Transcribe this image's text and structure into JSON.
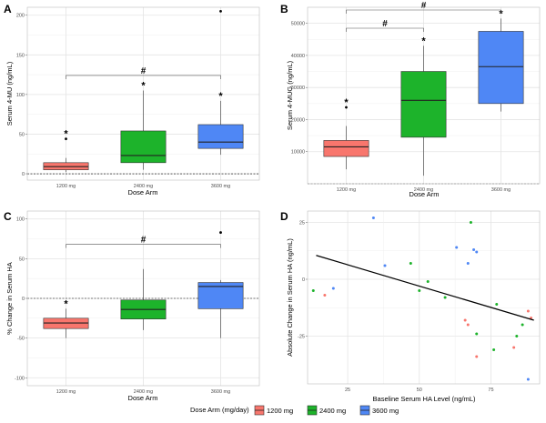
{
  "colors": {
    "1200 mg": "#F8766D",
    "2400 mg": "#1DB32B",
    "3600 mg": "#4F87F5",
    "grid": "#e4e4e4",
    "panel_border": "#bdbdbd"
  },
  "chart_data": [
    {
      "panel": "A",
      "type": "boxplot",
      "categories": [
        "1200 mg",
        "2400 mg",
        "3600 mg"
      ],
      "xlabel": "Dose Arm",
      "ylabel": "Serum 4-MU (ng/mL)",
      "ylim": [
        -8,
        210
      ],
      "yticks": [
        0,
        50,
        100,
        150,
        200
      ],
      "reference_line": 0,
      "boxes": [
        {
          "q1": 5,
          "median": 9,
          "q3": 14,
          "whisker_low": 2,
          "whisker_high": 20,
          "outliers": [
            44
          ]
        },
        {
          "q1": 14,
          "median": 23,
          "q3": 54,
          "whisker_low": 5,
          "whisker_high": 105,
          "outliers": []
        },
        {
          "q1": 32,
          "median": 40,
          "q3": 62,
          "whisker_low": 24,
          "whisker_high": 92,
          "outliers": [
            205
          ]
        }
      ],
      "stars": [
        "1200 mg",
        "2400 mg",
        "3600 mg"
      ],
      "brackets": [
        {
          "from": "1200 mg",
          "to": "3600 mg",
          "label": "#"
        }
      ]
    },
    {
      "panel": "B",
      "type": "boxplot",
      "categories": [
        "1200 mg",
        "2400 mg",
        "3600 mg"
      ],
      "xlabel": "Dose Arm",
      "ylabel": "Serum 4-MUG (ng/mL)",
      "ylim": [
        0,
        55000
      ],
      "yticks": [
        10000,
        20000,
        30000,
        40000,
        50000
      ],
      "reference_line": 0,
      "boxes": [
        {
          "q1": 8500,
          "median": 11500,
          "q3": 13500,
          "whisker_low": 4500,
          "whisker_high": 18000,
          "outliers": [
            23800
          ]
        },
        {
          "q1": 14500,
          "median": 26000,
          "q3": 35000,
          "whisker_low": 2500,
          "whisker_high": 43000,
          "outliers": []
        },
        {
          "q1": 25000,
          "median": 36500,
          "q3": 47500,
          "whisker_low": 22500,
          "whisker_high": 51500,
          "outliers": []
        }
      ],
      "stars": [
        "1200 mg",
        "2400 mg",
        "3600 mg"
      ],
      "brackets": [
        {
          "from": "1200 mg",
          "to": "2400 mg",
          "label": "#"
        },
        {
          "from": "1200 mg",
          "to": "3600 mg",
          "label": "#"
        }
      ]
    },
    {
      "panel": "C",
      "type": "boxplot",
      "categories": [
        "1200 mg",
        "2400 mg",
        "3600 mg"
      ],
      "xlabel": "Dose Arm",
      "ylabel": "% Change in Serum HA",
      "ylim": [
        -110,
        110
      ],
      "yticks": [
        -100,
        -50,
        0,
        50,
        100
      ],
      "reference_line": 0,
      "boxes": [
        {
          "q1": -38,
          "median": -31,
          "q3": -25,
          "whisker_low": -50,
          "whisker_high": -13,
          "outliers": []
        },
        {
          "q1": -26,
          "median": -14,
          "q3": -2,
          "whisker_low": -40,
          "whisker_high": 37,
          "outliers": []
        },
        {
          "q1": -13,
          "median": 15,
          "q3": 20,
          "whisker_low": -50,
          "whisker_high": 23,
          "outliers": [
            83
          ]
        }
      ],
      "stars": [
        "1200 mg"
      ],
      "brackets": [
        {
          "from": "1200 mg",
          "to": "3600 mg",
          "label": "#"
        }
      ]
    },
    {
      "panel": "D",
      "type": "scatter",
      "xlabel": "Baseline Serum HA Level (ng/mL)",
      "ylabel": "Absolute Change in Serum HA (ng/mL)",
      "xlim": [
        11,
        92
      ],
      "ylim": [
        -46,
        30
      ],
      "xticks": [
        25,
        50,
        75
      ],
      "yticks": [
        -25,
        0,
        25
      ],
      "trend_line": {
        "x": [
          14,
          90
        ],
        "y": [
          10.5,
          -18
        ]
      },
      "series": [
        {
          "group": "1200 mg",
          "points": [
            [
              17,
              -7
            ],
            [
              66,
              -18
            ],
            [
              67,
              -20
            ],
            [
              70,
              -34
            ],
            [
              83,
              -30
            ],
            [
              88,
              -14
            ],
            [
              89,
              -17
            ]
          ]
        },
        {
          "group": "2400 mg",
          "points": [
            [
              13,
              -5
            ],
            [
              47,
              7
            ],
            [
              50,
              -5
            ],
            [
              53,
              -1
            ],
            [
              59,
              -8
            ],
            [
              68,
              25
            ],
            [
              70,
              -24
            ],
            [
              76,
              -31
            ],
            [
              77,
              -11
            ],
            [
              84,
              -25
            ],
            [
              86,
              -20
            ]
          ]
        },
        {
          "group": "3600 mg",
          "points": [
            [
              20,
              -4
            ],
            [
              34,
              27
            ],
            [
              38,
              6
            ],
            [
              63,
              14
            ],
            [
              67,
              7
            ],
            [
              69,
              13
            ],
            [
              70,
              12
            ],
            [
              88,
              -44
            ]
          ]
        }
      ]
    }
  ],
  "legend": {
    "title": "Dose Arm (mg/day)",
    "items": [
      "1200 mg",
      "2400 mg",
      "3600 mg"
    ]
  }
}
